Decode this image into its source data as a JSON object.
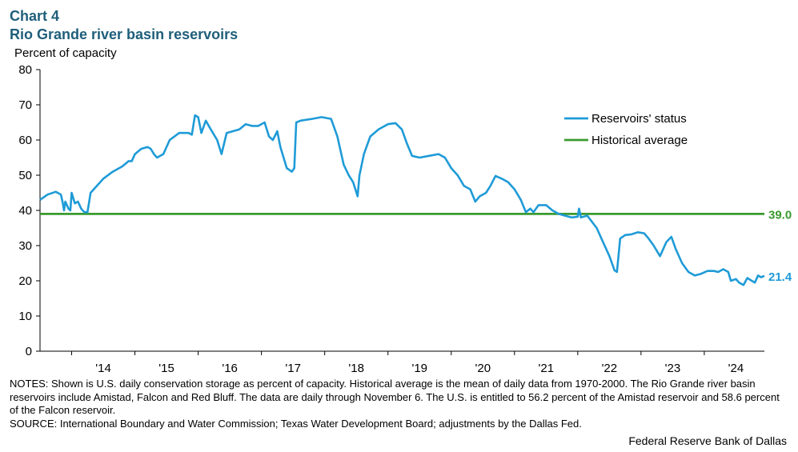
{
  "header": {
    "chart_number": "Chart 4",
    "title": "Rio Grande river basin reservoirs"
  },
  "footer": {
    "notes": "NOTES: Shown is U.S. daily conservation storage as percent of capacity. Historical average is the mean of daily data from 1970-2000. The Rio Grande river basin reservoirs include Amistad, Falcon and Red Bluff. The data are daily through November 6. The U.S. is entitled to 56.2 percent of the Amistad reservoir and 58.6 percent of the Falcon reservoir.",
    "source": "SOURCE: International  Boundary and Water Commission; Texas Water Development Board; adjustments by the Dallas Fed.",
    "credit": "Federal Reserve Bank of Dallas"
  },
  "colors": {
    "status": "#1f9bd7",
    "average": "#3a9a2f",
    "title": "#1f5e7a"
  },
  "chart_data": {
    "type": "line",
    "title": "Rio Grande river basin reservoirs",
    "ylabel": "Percent of capacity",
    "xlabel": "",
    "ylim": [
      0,
      80
    ],
    "yticks": [
      0,
      10,
      20,
      30,
      40,
      50,
      60,
      70,
      80
    ],
    "xlim": [
      2013.5,
      2024.95
    ],
    "xtick_labels": [
      "'14",
      "'15",
      "'16",
      "'17",
      "'18",
      "'19",
      "'20",
      "'21",
      "'22",
      "'23",
      "'24"
    ],
    "xtick_centers": [
      2014.5,
      2015.5,
      2016.5,
      2017.5,
      2018.5,
      2019.5,
      2020.5,
      2021.5,
      2022.5,
      2023.5,
      2024.5
    ],
    "legend_position": "top-right",
    "grid": false,
    "series": [
      {
        "name": "Reservoirs' status",
        "end_label": "21.4",
        "points": [
          [
            2013.5,
            43
          ],
          [
            2013.62,
            44.5
          ],
          [
            2013.75,
            45.3
          ],
          [
            2013.83,
            44.5
          ],
          [
            2013.86,
            42
          ],
          [
            2013.88,
            40
          ],
          [
            2013.9,
            42.5
          ],
          [
            2013.95,
            40.5
          ],
          [
            2013.98,
            40
          ],
          [
            2014.0,
            45
          ],
          [
            2014.05,
            42
          ],
          [
            2014.1,
            42.5
          ],
          [
            2014.15,
            40.5
          ],
          [
            2014.2,
            39.5
          ],
          [
            2014.25,
            39.5
          ],
          [
            2014.3,
            45
          ],
          [
            2014.4,
            47
          ],
          [
            2014.5,
            49
          ],
          [
            2014.65,
            51
          ],
          [
            2014.8,
            52.5
          ],
          [
            2014.9,
            54
          ],
          [
            2014.95,
            54
          ],
          [
            2015.0,
            56
          ],
          [
            2015.1,
            57.5
          ],
          [
            2015.2,
            58
          ],
          [
            2015.25,
            57.5
          ],
          [
            2015.3,
            56
          ],
          [
            2015.35,
            55
          ],
          [
            2015.45,
            56
          ],
          [
            2015.55,
            60
          ],
          [
            2015.7,
            62
          ],
          [
            2015.85,
            62
          ],
          [
            2015.9,
            61.5
          ],
          [
            2015.95,
            67
          ],
          [
            2016.0,
            66.5
          ],
          [
            2016.05,
            62
          ],
          [
            2016.12,
            65.5
          ],
          [
            2016.2,
            63
          ],
          [
            2016.3,
            60
          ],
          [
            2016.37,
            56
          ],
          [
            2016.45,
            62
          ],
          [
            2016.55,
            62.5
          ],
          [
            2016.65,
            63
          ],
          [
            2016.75,
            64.5
          ],
          [
            2016.85,
            64
          ],
          [
            2016.95,
            64
          ],
          [
            2017.05,
            65
          ],
          [
            2017.12,
            61
          ],
          [
            2017.18,
            60
          ],
          [
            2017.25,
            62.5
          ],
          [
            2017.3,
            58
          ],
          [
            2017.35,
            55
          ],
          [
            2017.4,
            52
          ],
          [
            2017.48,
            51
          ],
          [
            2017.52,
            52
          ],
          [
            2017.55,
            65
          ],
          [
            2017.62,
            65.5
          ],
          [
            2017.8,
            66
          ],
          [
            2017.95,
            66.5
          ],
          [
            2018.1,
            66
          ],
          [
            2018.2,
            61
          ],
          [
            2018.3,
            53
          ],
          [
            2018.38,
            50
          ],
          [
            2018.45,
            48
          ],
          [
            2018.52,
            44
          ],
          [
            2018.55,
            50
          ],
          [
            2018.62,
            56
          ],
          [
            2018.72,
            61
          ],
          [
            2018.85,
            63
          ],
          [
            2019.0,
            64.5
          ],
          [
            2019.12,
            64.8
          ],
          [
            2019.22,
            63
          ],
          [
            2019.3,
            59
          ],
          [
            2019.38,
            55.5
          ],
          [
            2019.5,
            55
          ],
          [
            2019.65,
            55.5
          ],
          [
            2019.8,
            56
          ],
          [
            2019.9,
            55
          ],
          [
            2020.0,
            52
          ],
          [
            2020.1,
            50
          ],
          [
            2020.2,
            47
          ],
          [
            2020.3,
            46
          ],
          [
            2020.38,
            42.5
          ],
          [
            2020.45,
            44
          ],
          [
            2020.55,
            45
          ],
          [
            2020.62,
            47
          ],
          [
            2020.7,
            49.8
          ],
          [
            2020.8,
            49
          ],
          [
            2020.9,
            48
          ],
          [
            2021.0,
            46
          ],
          [
            2021.1,
            43
          ],
          [
            2021.18,
            39.5
          ],
          [
            2021.25,
            40.5
          ],
          [
            2021.3,
            39.5
          ],
          [
            2021.38,
            41.5
          ],
          [
            2021.5,
            41.5
          ],
          [
            2021.6,
            40
          ],
          [
            2021.7,
            39
          ],
          [
            2021.8,
            38.5
          ],
          [
            2021.9,
            38
          ],
          [
            2022.0,
            38.2
          ],
          [
            2022.02,
            40.5
          ],
          [
            2022.05,
            38
          ],
          [
            2022.15,
            38.5
          ],
          [
            2022.3,
            35
          ],
          [
            2022.4,
            31
          ],
          [
            2022.5,
            27
          ],
          [
            2022.58,
            23
          ],
          [
            2022.62,
            22.5
          ],
          [
            2022.67,
            32
          ],
          [
            2022.75,
            33
          ],
          [
            2022.85,
            33.2
          ],
          [
            2022.95,
            33.8
          ],
          [
            2023.05,
            33.5
          ],
          [
            2023.12,
            32
          ],
          [
            2023.2,
            30
          ],
          [
            2023.3,
            27
          ],
          [
            2023.4,
            31
          ],
          [
            2023.48,
            32.5
          ],
          [
            2023.55,
            29
          ],
          [
            2023.65,
            25
          ],
          [
            2023.75,
            22.5
          ],
          [
            2023.85,
            21.5
          ],
          [
            2023.95,
            22
          ],
          [
            2024.05,
            22.8
          ],
          [
            2024.15,
            22.8
          ],
          [
            2024.22,
            22.5
          ],
          [
            2024.3,
            23.3
          ],
          [
            2024.38,
            22.5
          ],
          [
            2024.42,
            20
          ],
          [
            2024.5,
            20.5
          ],
          [
            2024.55,
            19.5
          ],
          [
            2024.62,
            18.8
          ],
          [
            2024.68,
            20.8
          ],
          [
            2024.75,
            20
          ],
          [
            2024.8,
            19.5
          ],
          [
            2024.85,
            21.5
          ],
          [
            2024.9,
            21
          ],
          [
            2024.95,
            21.4
          ]
        ]
      },
      {
        "name": "Historical average",
        "end_label": "39.0",
        "points": [
          [
            2013.5,
            39.0
          ],
          [
            2024.95,
            39.0
          ]
        ]
      }
    ]
  }
}
